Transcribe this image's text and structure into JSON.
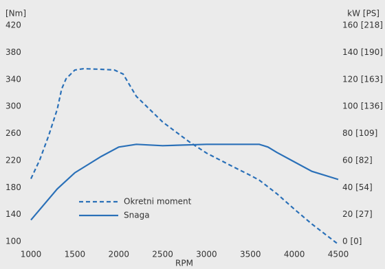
{
  "chart_data": {
    "type": "line",
    "ylabel": "[Nm]",
    "y2label": "kW [PS]",
    "xlabel": "RPM",
    "xlim": [
      1000,
      4500
    ],
    "xticks": [
      1000,
      1500,
      2000,
      2500,
      3000,
      3500,
      4000,
      4500
    ],
    "ylim": [
      100,
      420
    ],
    "yticks": [
      100,
      140,
      180,
      220,
      260,
      300,
      340,
      380,
      420
    ],
    "y2lim": [
      0,
      160
    ],
    "y2ticks": [
      {
        "value": 0,
        "label": "0 [0]"
      },
      {
        "value": 20,
        "label": "20 [27]"
      },
      {
        "value": 40,
        "label": "40 [54]"
      },
      {
        "value": 60,
        "label": "60 [82]"
      },
      {
        "value": 80,
        "label": "80 [109]"
      },
      {
        "value": 100,
        "label": "100 [136]"
      },
      {
        "value": 120,
        "label": "120 [163]"
      },
      {
        "value": 140,
        "label": "140 [190]"
      },
      {
        "value": 160,
        "label": "160 [218]"
      }
    ],
    "legend": "lower left",
    "series": [
      {
        "name": "Okretni moment",
        "color": "#2a70b8",
        "dashed": true,
        "x": [
          1000,
          1100,
          1200,
          1300,
          1350,
          1400,
          1500,
          1600,
          1800,
          1950,
          2050,
          2200,
          2500,
          2800,
          3000,
          3300,
          3500,
          3600,
          3800,
          4000,
          4200,
          4500
        ],
        "values": [
          197,
          225,
          260,
          300,
          330,
          345,
          358,
          360,
          359,
          358,
          352,
          319,
          281,
          252,
          235,
          215,
          202,
          195,
          175,
          152,
          130,
          100
        ]
      },
      {
        "name": "Snaga",
        "color": "#2a70b8",
        "dashed": false,
        "axis": "y2",
        "x": [
          1000,
          1300,
          1500,
          1800,
          2000,
          2200,
          2500,
          3000,
          3500,
          3600,
          3700,
          3800,
          4000,
          4200,
          4500
        ],
        "values": [
          18,
          41,
          53,
          65,
          72,
          74,
          73,
          74,
          74,
          74,
          72,
          68,
          61,
          54,
          48
        ]
      }
    ]
  }
}
